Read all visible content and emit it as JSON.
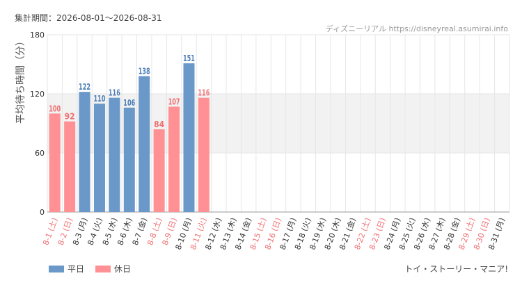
{
  "header": {
    "period": "集計期間：2026-08-01～2026-08-31",
    "source": "ディズニーリアル https://disneyreal.asumirai.info"
  },
  "legend": {
    "weekday": "平日",
    "holiday": "休日"
  },
  "attraction_name": "トイ・ストーリー・マニア!",
  "colors": {
    "weekday": "#6a98c8",
    "holiday": "#ff9194",
    "weekday_label": "#4d7fb8",
    "holiday_label": "#ef6f72",
    "band": "#f2f2f2",
    "grid": "#e6e6e6",
    "axis_text": "#333333"
  },
  "chart_data": {
    "type": "bar",
    "ylabel": "平均待ち時間（分）",
    "ylim": [
      0,
      180
    ],
    "yticks": [
      0,
      60,
      120,
      180
    ],
    "band": [
      60,
      120
    ],
    "grid": true,
    "legend_position": "bottom-left",
    "categories": [
      "8-1 (土)",
      "8-2 (日)",
      "8-3 (月)",
      "8-4 (火)",
      "8-5 (水)",
      "8-6 (木)",
      "8-7 (金)",
      "8-8 (土)",
      "8-9 (日)",
      "8-10 (月)",
      "8-11 (火)",
      "8-12 (水)",
      "8-13 (木)",
      "8-14 (金)",
      "8-15 (土)",
      "8-16 (日)",
      "8-17 (月)",
      "8-18 (火)",
      "8-19 (水)",
      "8-20 (木)",
      "8-21 (金)",
      "8-22 (土)",
      "8-23 (日)",
      "8-24 (月)",
      "8-25 (火)",
      "8-26 (水)",
      "8-27 (木)",
      "8-28 (金)",
      "8-29 (土)",
      "8-30 (日)",
      "8-31 (月)"
    ],
    "day_type": [
      "holiday",
      "holiday",
      "weekday",
      "weekday",
      "weekday",
      "weekday",
      "weekday",
      "holiday",
      "holiday",
      "weekday",
      "holiday",
      "weekday",
      "weekday",
      "weekday",
      "holiday",
      "holiday",
      "weekday",
      "weekday",
      "weekday",
      "weekday",
      "weekday",
      "holiday",
      "holiday",
      "weekday",
      "weekday",
      "weekday",
      "weekday",
      "weekday",
      "holiday",
      "holiday",
      "weekday"
    ],
    "values": [
      100,
      92,
      122,
      110,
      116,
      106,
      138,
      84,
      107,
      151,
      116,
      null,
      null,
      null,
      null,
      null,
      null,
      null,
      null,
      null,
      null,
      null,
      null,
      null,
      null,
      null,
      null,
      null,
      null,
      null,
      null
    ]
  }
}
